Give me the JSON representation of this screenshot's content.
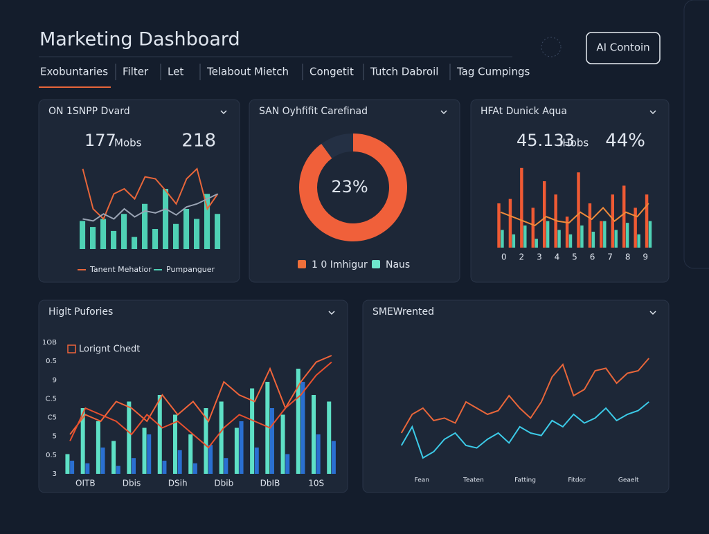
{
  "header": {
    "title": "Marketing Dashboard",
    "button": "AI Contoin"
  },
  "tabs": [
    "Exobuntaries",
    "Filter",
    "Let",
    "Telabout Mietch",
    "Congetit",
    "Tutch Dabroil",
    "Tag Cumpings"
  ],
  "panels": [
    {
      "title": "ON 1SNPP Dvard",
      "stat": "177",
      "stat_unit": "Mobs",
      "stat_accent": "218",
      "chart": {
        "type": "combo",
        "ylim": [
          0,
          100
        ],
        "series": [
          {
            "name": "Pumpanguer",
            "kind": "bar",
            "color": "#4fd1b5",
            "values": [
              28,
              22,
              30,
              18,
              35,
              12,
              45,
              20,
              60,
              25,
              40,
              30,
              55,
              35
            ]
          },
          {
            "name": "Tanent Mehatior",
            "kind": "line",
            "color": "#e8663a",
            "values": [
              80,
              40,
              30,
              55,
              60,
              50,
              72,
              70,
              58,
              45,
              70,
              80,
              40,
              55
            ]
          },
          {
            "kind": "line",
            "color": "#9aa4b4",
            "values": [
              30,
              28,
              35,
              30,
              40,
              32,
              38,
              36,
              40,
              34,
              42,
              45,
              50,
              55
            ]
          }
        ]
      }
    },
    {
      "title": "SAN Oyhfifit Carefinad",
      "center_label": "23%",
      "chart": {
        "type": "donut",
        "segments": [
          {
            "name": "1 0 Imhigur",
            "value": 90,
            "color": "#f0603a",
            "legend_color": "#f0703a"
          },
          {
            "name": "Naus",
            "value": 10,
            "color": "#243044",
            "legend_color": "#6ee6cc"
          }
        ]
      }
    },
    {
      "title": "HFAt Dunick Aqua",
      "stat": "45.133",
      "stat_unit": "IHobs",
      "stat_accent": "44%",
      "x_labels": [
        "0",
        "2",
        "3",
        "4",
        "5",
        "6",
        "7",
        "8",
        "9"
      ],
      "chart": {
        "type": "combo",
        "ylim": [
          0,
          100
        ],
        "series": [
          {
            "kind": "bar",
            "color": "#ef5a34",
            "values": [
              50,
              55,
              90,
              45,
              75,
              60,
              35,
              85,
              50,
              30,
              60,
              70,
              45,
              60
            ]
          },
          {
            "kind": "bar",
            "color": "#4fd1b5",
            "values": [
              20,
              15,
              25,
              10,
              30,
              20,
              15,
              25,
              18,
              30,
              20,
              28,
              15,
              30
            ]
          },
          {
            "kind": "line",
            "color": "#f08a3a",
            "values": [
              40,
              35,
              30,
              25,
              35,
              30,
              28,
              40,
              32,
              45,
              30,
              40,
              35,
              50
            ]
          }
        ]
      }
    },
    {
      "title": "Higlt Pufories",
      "legend": "Lorignt Chedt",
      "x_labels": [
        "OITB",
        "Dbis",
        "DSih",
        "Dbib",
        "DbIB",
        "10S"
      ],
      "y_labels": [
        "1OB",
        "0.5",
        "9",
        "C.5",
        "C5",
        "5",
        "0.5",
        "3"
      ],
      "chart": {
        "type": "combo",
        "ylim": [
          0,
          100
        ],
        "series": [
          {
            "kind": "bar",
            "color": "#5ee0c6",
            "values": [
              15,
              50,
              40,
              25,
              55,
              35,
              60,
              45,
              30,
              50,
              55,
              35,
              65,
              70,
              45,
              80,
              60,
              55
            ]
          },
          {
            "kind": "bar",
            "color": "#2a6fd1",
            "values": [
              10,
              8,
              20,
              6,
              12,
              30,
              10,
              18,
              8,
              22,
              12,
              40,
              20,
              50,
              15,
              70,
              30,
              25
            ]
          },
          {
            "name": "Lorignt Chedt",
            "kind": "line",
            "color": "#f0643a",
            "values": [
              30,
              45,
              40,
              55,
              50,
              40,
              60,
              45,
              55,
              40,
              70,
              60,
              55,
              80,
              50,
              70,
              85,
              90
            ]
          },
          {
            "kind": "line",
            "color": "#e8502e",
            "values": [
              25,
              50,
              45,
              40,
              30,
              45,
              35,
              40,
              30,
              20,
              35,
              45,
              40,
              35,
              50,
              60,
              75,
              85
            ]
          }
        ]
      }
    },
    {
      "title": "SMEWrented",
      "x_labels": [
        "Fean",
        "Teaten",
        "Fatting",
        "Fitdor",
        "Geaelt"
      ],
      "chart": {
        "type": "combo",
        "ylim": [
          0,
          100
        ],
        "series": [
          {
            "kind": "line",
            "color": "#e8663a",
            "values": [
              30,
              45,
              50,
              40,
              42,
              38,
              55,
              50,
              45,
              48,
              60,
              50,
              42,
              55,
              75,
              85,
              60,
              65,
              80,
              82,
              70,
              78,
              80,
              90
            ]
          },
          {
            "kind": "line",
            "color": "#3ccbe8",
            "values": [
              20,
              35,
              10,
              15,
              25,
              30,
              20,
              18,
              25,
              30,
              22,
              35,
              30,
              28,
              40,
              35,
              45,
              38,
              42,
              50,
              40,
              45,
              48,
              55
            ]
          }
        ]
      }
    }
  ]
}
